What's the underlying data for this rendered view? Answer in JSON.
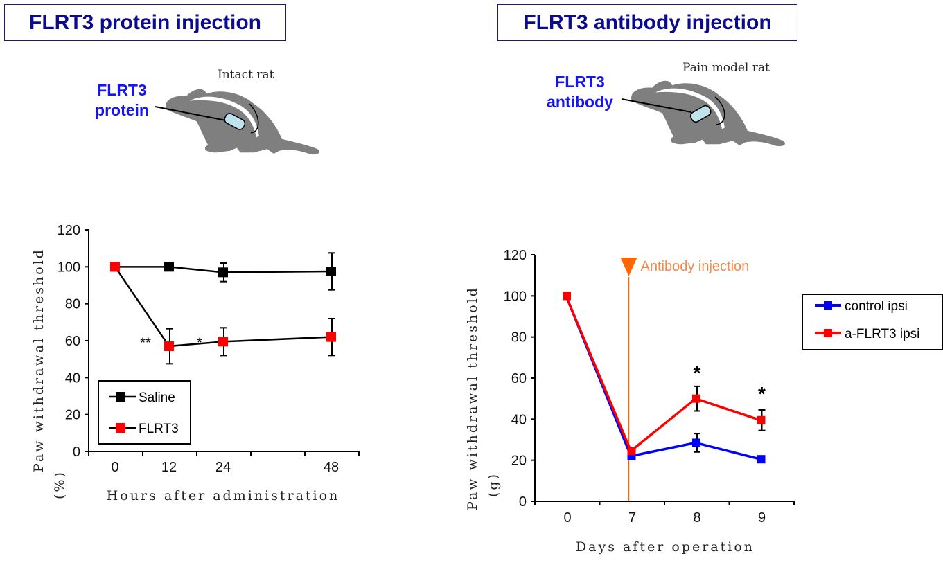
{
  "panels": [
    {
      "title": "FLRT3 protein injection",
      "rat_label": "Intact rat",
      "injection_label_line1": "FLRT3",
      "injection_label_line2": "protein"
    },
    {
      "title": "FLRT3 antibody injection",
      "rat_label": "Pain model rat",
      "injection_label_line1": "FLRT3",
      "injection_label_line2": "antibody"
    }
  ],
  "chart_data": [
    {
      "type": "line",
      "xlabel": "Hours after administration",
      "ylabel": "Paw withdrawal threshold",
      "ylabel_unit": "(%)",
      "x": [
        0,
        12,
        24,
        48
      ],
      "x_tick_labels": [
        "0",
        "12",
        "24",
        "48"
      ],
      "ylim": [
        0,
        120
      ],
      "y_ticks": [
        0,
        20,
        40,
        60,
        80,
        100,
        120
      ],
      "legend_position": "bottom-left",
      "series": [
        {
          "name": "Saline",
          "color": "#000000",
          "values": [
            100,
            100,
            97,
            97.5
          ],
          "errors": [
            0,
            0,
            5,
            10
          ]
        },
        {
          "name": "FLRT3",
          "color": "#ff0000",
          "values": [
            100,
            57,
            59.5,
            62
          ],
          "errors": [
            0,
            9.5,
            7.5,
            10
          ]
        }
      ],
      "annotations": [
        {
          "text": "**",
          "x": 6,
          "y": 61
        },
        {
          "text": "*",
          "x": 18,
          "y": 61
        }
      ]
    },
    {
      "type": "line",
      "xlabel": "Days after operation",
      "ylabel": "Paw withdrawal threshold",
      "ylabel_unit": "(g)",
      "categories": [
        "0",
        "7",
        "8",
        "9"
      ],
      "ylim": [
        0,
        120
      ],
      "y_ticks": [
        0,
        20,
        40,
        60,
        80,
        100,
        120
      ],
      "legend_position": "right",
      "series": [
        {
          "name": "control ipsi",
          "color": "#0000ff",
          "values": [
            100,
            22,
            28.5,
            20.5
          ],
          "errors": [
            0,
            0,
            4.5,
            1.5
          ]
        },
        {
          "name": "a-FLRT3 ipsi",
          "color": "#ff0000",
          "values": [
            100,
            24.5,
            50,
            39.5
          ],
          "errors": [
            0,
            0,
            6,
            5
          ]
        }
      ],
      "event_marker": {
        "text": "Antibody injection",
        "category": "7",
        "color": "#ff6600"
      },
      "annotations": [
        {
          "text": "*",
          "category": "8",
          "y": 64
        },
        {
          "text": "*",
          "category": "9",
          "y": 54
        }
      ]
    }
  ]
}
